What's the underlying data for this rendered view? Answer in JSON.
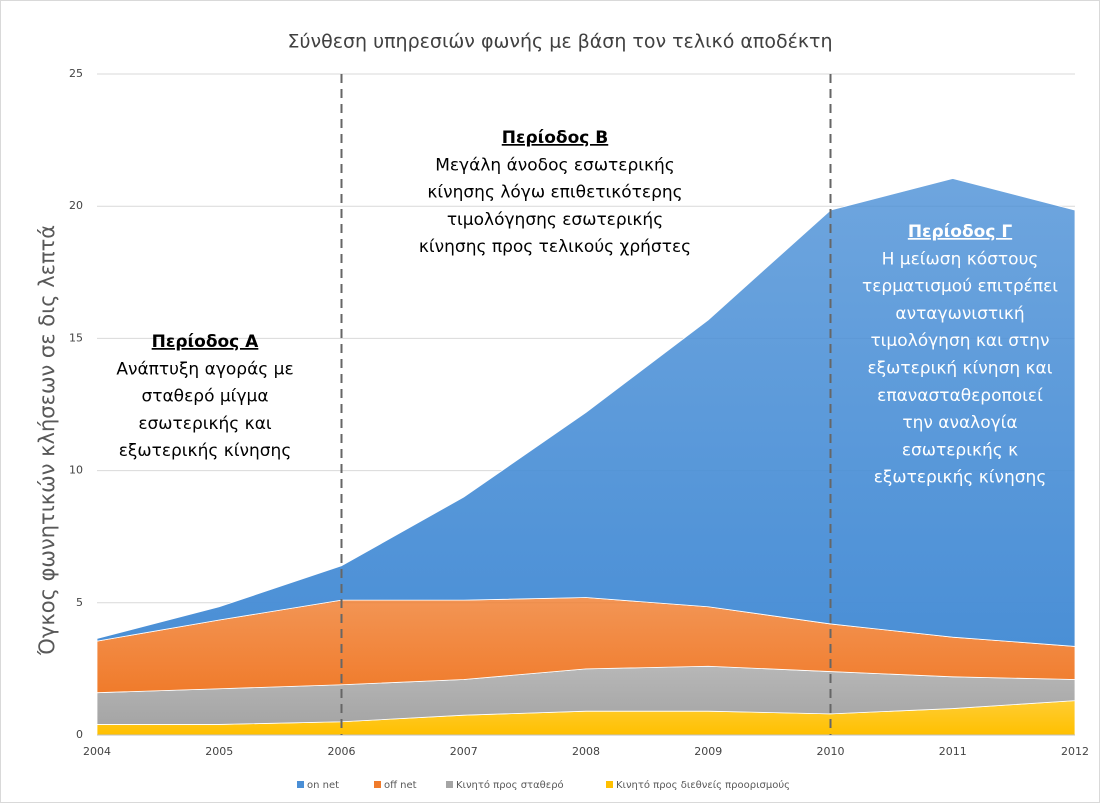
{
  "chart_data": {
    "type": "stacked_area",
    "title": "Σύνθεση υπηρεσιών φωνής με βάση τον τελικό αποδέκτη",
    "y_label": "Όγκος φωνητικών κλήσεων σε δις λεπτά",
    "x": [
      2004,
      2005,
      2006,
      2007,
      2008,
      2009,
      2010,
      2011,
      2012
    ],
    "xlim": [
      2004,
      2012
    ],
    "xticks": [
      2004,
      2005,
      2006,
      2007,
      2008,
      2009,
      2010,
      2011,
      2012
    ],
    "ylim": [
      0,
      25
    ],
    "yticks": [
      0,
      5,
      10,
      15,
      20,
      25
    ],
    "grid": true,
    "legend": "bottom",
    "vlines": [
      2006,
      2010
    ],
    "series": [
      {
        "name": "on net",
        "color": "#4a8fd6",
        "values": [
          0.1,
          0.5,
          1.3,
          3.9,
          7.0,
          10.85,
          15.65,
          17.35,
          16.5
        ]
      },
      {
        "name": "off net",
        "color": "#f07b2b",
        "values": [
          1.95,
          2.6,
          3.2,
          3.0,
          2.7,
          2.25,
          1.8,
          1.5,
          1.25
        ]
      },
      {
        "name": "Κινητό προς σταθερό",
        "color": "#a5a5a5",
        "values": [
          1.2,
          1.35,
          1.4,
          1.35,
          1.6,
          1.7,
          1.6,
          1.2,
          0.8
        ]
      },
      {
        "name": "Κινητό προς διεθνείς προορισμούς",
        "color": "#ffc000",
        "values": [
          0.4,
          0.4,
          0.5,
          0.75,
          0.9,
          0.9,
          0.8,
          1.0,
          1.3
        ]
      }
    ],
    "annotations": [
      {
        "title": "Περίοδος Α",
        "color": "#000000",
        "lines": [
          "Ανάπτυξη αγοράς με",
          "σταθερό μίγμα",
          "εσωτερικής και",
          "εξωτερικής κίνησης"
        ]
      },
      {
        "title": "Περίοδος Β",
        "color": "#000000",
        "lines": [
          "Μεγάλη άνοδος εσωτερικής",
          "κίνησης λόγω επιθετικότερης",
          "τιμολόγησης εσωτερικής",
          "κίνησης προς τελικούς χρήστες"
        ]
      },
      {
        "title": "Περίοδος Γ",
        "color": "#ffffff",
        "lines": [
          "Η μείωση κόστους",
          "τερματισμού επιτρέπει",
          "ανταγωνιστική",
          "τιμολόγηση και στην",
          "εξωτερική κίνηση και",
          "επανασταθεροποιεί",
          "την αναλογία",
          "εσωτερικής κ",
          "εξωτερικής κίνησης"
        ]
      }
    ]
  }
}
